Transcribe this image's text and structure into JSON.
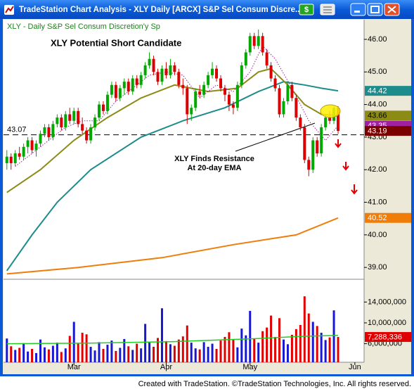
{
  "window_title": "TradeStation Chart Analysis - XLY Daily [ARCX] S&P Sel Consum Discre...",
  "window_button": "$",
  "chart_data": {
    "type": "candlestick",
    "title": "XLY Potential Short Candidate",
    "subtitle": "XLY - Daily  S&P Sel Consum Discretion'y Sp",
    "open": [
      42.2,
      42.4,
      42.2,
      42.5,
      42.4,
      42.7,
      42.9,
      42.6,
      42.8,
      43.1,
      43.3,
      43.0,
      43.4,
      43.6,
      43.3,
      43.7,
      43.5,
      43.8,
      43.4,
      43.2,
      42.9,
      43.3,
      43.6,
      44.0,
      43.8,
      44.3,
      44.6,
      44.2,
      44.5,
      44.7,
      44.4,
      44.8,
      44.6,
      44.9,
      45.2,
      45.4,
      45.0,
      44.7,
      45.1,
      44.9,
      45.2,
      45.0,
      44.6,
      44.5,
      43.7,
      43.9,
      44.4,
      44.3,
      44.6,
      44.9,
      45.1,
      44.8,
      44.5,
      44.3,
      44.0,
      43.9,
      44.6,
      45.2,
      45.6,
      46.1,
      45.8,
      46.1,
      45.6,
      45.2,
      44.8,
      44.5,
      43.7,
      44.1,
      44.6,
      44.2,
      43.6,
      43.3,
      42.3,
      42.0,
      42.9,
      42.5,
      43.3,
      43.6,
      43.5,
      43.9
    ],
    "high": [
      42.6,
      42.5,
      42.6,
      42.7,
      42.8,
      43.0,
      43.0,
      42.9,
      43.2,
      43.4,
      43.4,
      43.5,
      43.7,
      43.7,
      43.8,
      43.9,
      43.9,
      43.9,
      43.6,
      43.3,
      43.4,
      43.7,
      44.1,
      44.1,
      44.4,
      44.7,
      44.7,
      44.6,
      44.8,
      44.8,
      44.9,
      44.9,
      45.0,
      45.3,
      45.6,
      45.5,
      45.1,
      45.2,
      45.3,
      45.4,
      45.3,
      45.1,
      44.8,
      44.6,
      44.0,
      44.5,
      44.6,
      44.7,
      45.0,
      45.3,
      45.2,
      44.9,
      44.6,
      44.4,
      44.1,
      44.7,
      45.3,
      45.7,
      46.2,
      46.2,
      46.3,
      46.2,
      45.7,
      45.3,
      44.9,
      44.6,
      44.2,
      44.7,
      44.7,
      44.3,
      43.7,
      43.4,
      42.4,
      43.0,
      43.0,
      43.4,
      43.7,
      43.8,
      43.95,
      43.95
    ],
    "low": [
      42.0,
      42.0,
      42.1,
      42.3,
      42.3,
      42.5,
      42.5,
      42.4,
      42.7,
      43.0,
      42.9,
      42.9,
      43.3,
      43.2,
      43.2,
      43.4,
      43.4,
      43.3,
      43.1,
      42.8,
      42.8,
      43.2,
      43.5,
      43.7,
      43.7,
      44.2,
      44.1,
      44.1,
      44.3,
      44.3,
      44.3,
      44.5,
      44.5,
      44.8,
      45.1,
      44.9,
      44.6,
      44.6,
      44.8,
      44.8,
      44.9,
      44.5,
      44.3,
      43.4,
      43.5,
      43.8,
      44.2,
      44.2,
      44.5,
      44.8,
      44.7,
      44.4,
      44.1,
      43.8,
      43.7,
      43.8,
      44.5,
      45.1,
      45.5,
      45.7,
      45.7,
      45.5,
      45.1,
      44.7,
      44.4,
      43.6,
      43.6,
      44.0,
      44.1,
      43.5,
      43.2,
      42.2,
      41.8,
      41.9,
      42.4,
      42.4,
      43.2,
      43.4,
      43.4,
      43.1
    ],
    "close": [
      42.4,
      42.2,
      42.5,
      42.4,
      42.7,
      42.9,
      42.6,
      42.8,
      43.1,
      43.3,
      43.0,
      43.4,
      43.6,
      43.3,
      43.7,
      43.5,
      43.8,
      43.4,
      43.2,
      42.9,
      43.3,
      43.6,
      44.0,
      43.8,
      44.3,
      44.6,
      44.2,
      44.5,
      44.7,
      44.4,
      44.8,
      44.6,
      44.9,
      45.2,
      45.4,
      45.0,
      44.7,
      45.1,
      44.9,
      45.2,
      45.0,
      44.6,
      44.5,
      43.7,
      43.9,
      44.4,
      44.3,
      44.6,
      44.9,
      45.1,
      44.8,
      44.5,
      44.3,
      44.0,
      43.9,
      44.6,
      45.2,
      45.6,
      46.1,
      45.8,
      46.1,
      45.6,
      45.2,
      44.8,
      44.5,
      43.7,
      44.1,
      44.6,
      44.2,
      43.6,
      43.3,
      42.3,
      42.0,
      42.9,
      42.5,
      43.3,
      43.6,
      43.5,
      43.9,
      43.19
    ],
    "up_color": "#00a800",
    "down_color": "#d80000",
    "close_label_color": "#7a0000",
    "xlim": [
      -0.8,
      85.2
    ],
    "xticks": [
      {
        "value": 16,
        "label": "Mar"
      },
      {
        "value": 38,
        "label": "Apr"
      },
      {
        "value": 58,
        "label": "May"
      },
      {
        "value": 83,
        "label": "Jun"
      }
    ],
    "ylim": [
      38.68,
      46.56
    ],
    "yticks": [
      {
        "value": 39,
        "label": "39.00"
      },
      {
        "value": 40,
        "label": "40.00"
      },
      {
        "value": 41,
        "label": "41.00"
      },
      {
        "value": 42,
        "label": "42.00"
      },
      {
        "value": 43,
        "label": "43.00"
      },
      {
        "value": 44,
        "label": "44.00"
      },
      {
        "value": 45,
        "label": "45.00"
      },
      {
        "value": 46,
        "label": "46.00"
      }
    ],
    "reference_line": 43.07,
    "annotation": [
      "XLY Finds Resistance",
      "At 20-day EMA"
    ],
    "series": [
      {
        "color": "#1e8c8c",
        "style": "solid",
        "label_text": "#ffffff",
        "x": [
          0,
          6,
          12,
          20,
          32,
          42,
          52,
          60,
          66,
          71,
          75,
          79
        ],
        "values": [
          38.9,
          40.0,
          41.0,
          42.0,
          43.0,
          43.5,
          43.9,
          44.4,
          44.7,
          44.6,
          44.5,
          44.42
        ]
      },
      {
        "color": "#8b8b16",
        "style": "solid",
        "label_text": "#000000",
        "x": [
          0,
          8,
          16,
          24,
          32,
          40,
          48,
          55,
          60,
          63,
          67,
          71,
          75,
          79
        ],
        "values": [
          41.3,
          42.0,
          42.9,
          43.6,
          44.2,
          44.6,
          44.4,
          44.5,
          45.0,
          45.1,
          44.6,
          44.0,
          43.7,
          43.66
        ]
      },
      {
        "color": "#a020a0",
        "style": "dotted",
        "label_text": "#ffffff",
        "x": [
          2,
          6,
          10,
          14,
          18,
          22,
          26,
          30,
          34,
          38,
          42,
          46,
          50,
          54,
          58,
          61,
          64,
          68,
          72,
          76,
          79
        ],
        "values": [
          42.1,
          42.5,
          42.9,
          43.3,
          43.5,
          43.5,
          44.1,
          44.5,
          44.9,
          45.0,
          44.9,
          44.2,
          44.6,
          44.4,
          45.0,
          45.8,
          45.4,
          44.5,
          43.5,
          42.9,
          43.35
        ]
      },
      {
        "color": "#f07d0a",
        "style": "solid",
        "label_text": "#ffffff",
        "x": [
          0,
          17,
          37,
          54,
          69,
          79
        ],
        "values": [
          38.8,
          39.0,
          39.3,
          39.7,
          40.0,
          40.52
        ]
      }
    ],
    "volume": {
      "values": [
        7000000,
        5500000,
        4800000,
        5200000,
        6100000,
        4500000,
        5000000,
        4200000,
        6800000,
        5300000,
        4900000,
        5600000,
        6200000,
        4400000,
        5100000,
        7500000,
        10200000,
        6000000,
        8100000,
        7800000,
        5400000,
        4700000,
        6300000,
        5000000,
        5800000,
        6600000,
        4600000,
        5200000,
        6900000,
        5500000,
        4800000,
        6000000,
        5100000,
        9800000,
        6200000,
        5400000,
        7100000,
        12800000,
        6500000,
        5900000,
        5600000,
        6800000,
        7400000,
        9500000,
        6200000,
        5100000,
        4900000,
        6300000,
        5400000,
        6000000,
        5000000,
        6600000,
        7300000,
        8200000,
        6800000,
        5300000,
        8900000,
        7600000,
        12300000,
        6900000,
        6200000,
        8400000,
        9100000,
        11400000,
        7300000,
        10900000,
        6800000,
        5900000,
        7700000,
        8800000,
        9600000,
        15100000,
        11800000,
        10200000,
        9400000,
        8100000,
        6700000,
        7200000,
        12400000,
        7288336
      ],
      "last_label": "7,288,336",
      "up_color": "#1818d0",
      "down_color": "#e00000",
      "ylim": [
        2430000,
        17970000
      ],
      "yticks": [
        {
          "value": 6000000,
          "label": "6,000,000"
        },
        {
          "value": 10000000,
          "label": "10,000,000"
        },
        {
          "value": 14000000,
          "label": "14,000,000"
        }
      ],
      "average": {
        "color": "#22cc22",
        "x": [
          0,
          20,
          40,
          60,
          70,
          79
        ],
        "values": [
          6000000,
          6100000,
          6400000,
          7000000,
          7400000,
          7600000
        ]
      }
    }
  },
  "footer": "Created with TradeStation. ©TradeStation Technologies, Inc. All rights reserved."
}
